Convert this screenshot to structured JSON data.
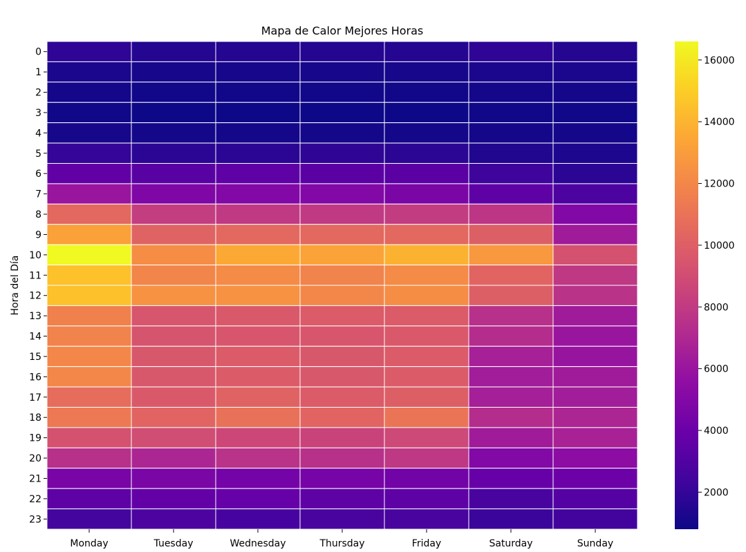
{
  "chart_data": {
    "type": "heatmap",
    "title": "Mapa de Calor Mejores Horas",
    "xlabel": "",
    "ylabel": "Hora del Día",
    "colormap": "plasma",
    "x_categories": [
      "Monday",
      "Tuesday",
      "Wednesday",
      "Thursday",
      "Friday",
      "Saturday",
      "Sunday"
    ],
    "y_categories": [
      "0",
      "1",
      "2",
      "3",
      "4",
      "5",
      "6",
      "7",
      "8",
      "9",
      "10",
      "11",
      "12",
      "13",
      "14",
      "15",
      "16",
      "17",
      "18",
      "19",
      "20",
      "21",
      "22",
      "23"
    ],
    "values": [
      [
        1800,
        1500,
        1500,
        1500,
        1500,
        1800,
        1500
      ],
      [
        1200,
        1100,
        1100,
        1100,
        1100,
        1200,
        1200
      ],
      [
        1000,
        900,
        900,
        900,
        900,
        1000,
        1000
      ],
      [
        900,
        800,
        800,
        800,
        800,
        900,
        900
      ],
      [
        1100,
        1000,
        1000,
        1000,
        1000,
        1000,
        1000
      ],
      [
        2000,
        1700,
        1700,
        1800,
        1700,
        1400,
        1300
      ],
      [
        3600,
        3300,
        3500,
        3400,
        3400,
        2300,
        1700
      ],
      [
        6000,
        4800,
        5000,
        5000,
        4700,
        3500,
        2800
      ],
      [
        10500,
        8200,
        8000,
        8000,
        8100,
        7800,
        5000
      ],
      [
        13200,
        10200,
        10500,
        10500,
        10500,
        10000,
        6300
      ],
      [
        16600,
        12300,
        13500,
        13300,
        13900,
        12800,
        9300
      ],
      [
        14500,
        11900,
        12200,
        11800,
        12200,
        10300,
        7900
      ],
      [
        14500,
        12500,
        12500,
        12000,
        12300,
        10000,
        7600
      ],
      [
        11700,
        9500,
        9700,
        9800,
        9800,
        7500,
        6300
      ],
      [
        11800,
        9400,
        9500,
        9500,
        9700,
        7300,
        6000
      ],
      [
        12000,
        9600,
        9800,
        9600,
        9800,
        6600,
        5900
      ],
      [
        12000,
        9600,
        9800,
        9600,
        9800,
        6400,
        6300
      ],
      [
        10700,
        9700,
        10200,
        9800,
        10000,
        6500,
        6400
      ],
      [
        11300,
        10300,
        10900,
        10300,
        11100,
        7300,
        6900
      ],
      [
        9300,
        9000,
        8700,
        8500,
        8800,
        6300,
        6700
      ],
      [
        7500,
        6900,
        7600,
        7500,
        7900,
        5000,
        5400
      ],
      [
        4600,
        4700,
        4400,
        4500,
        4300,
        3800,
        4100
      ],
      [
        3500,
        3700,
        3800,
        3500,
        3500,
        2700,
        3100
      ],
      [
        2500,
        2800,
        2600,
        2700,
        2700,
        2200,
        2400
      ]
    ],
    "vmin": 800,
    "vmax": 16600,
    "colorbar_ticks": [
      2000,
      4000,
      6000,
      8000,
      10000,
      12000,
      14000,
      16000
    ],
    "grid": true
  }
}
